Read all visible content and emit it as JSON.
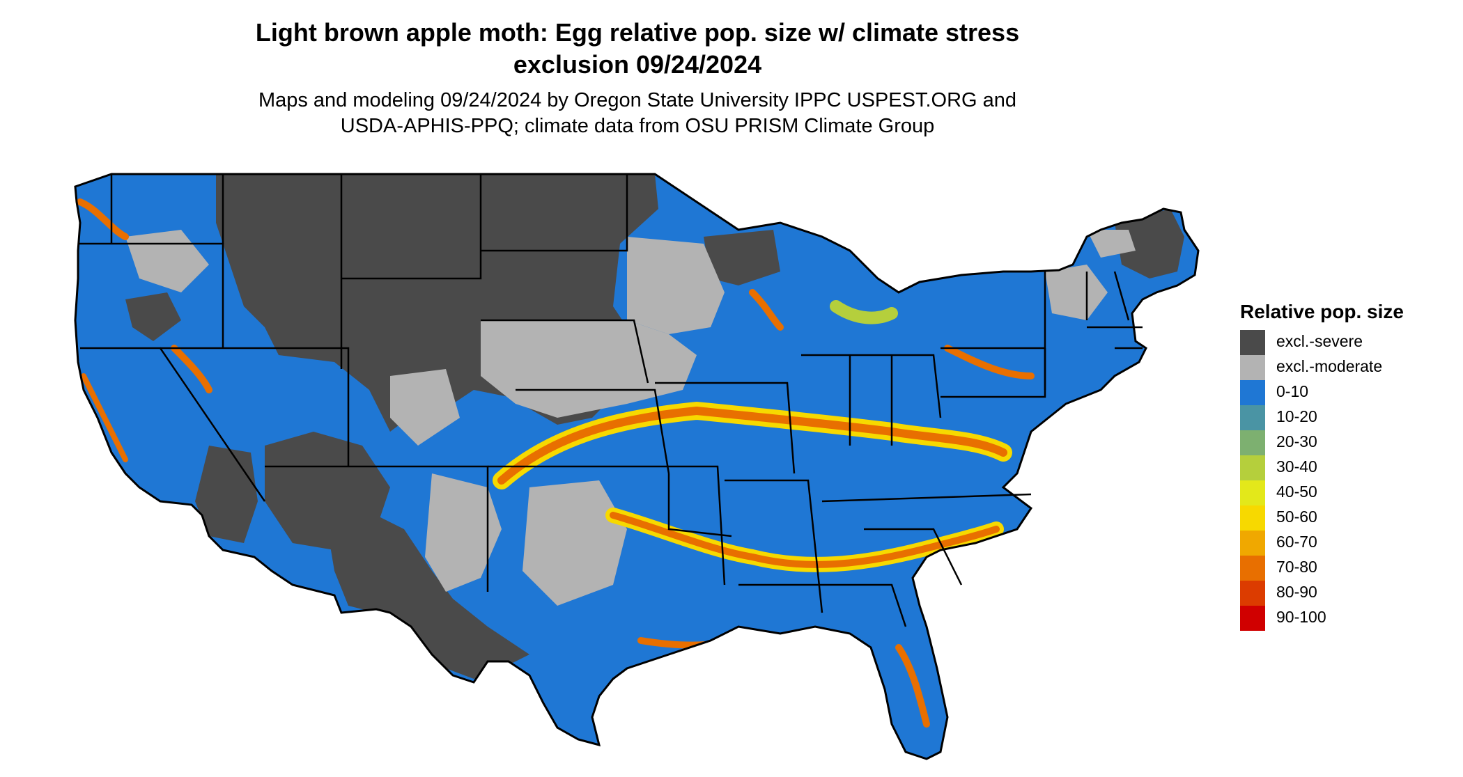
{
  "title_line1": "Light brown apple moth: Egg relative pop. size w/ climate stress",
  "title_line2": "exclusion 09/24/2024",
  "subtitle_line1": "Maps and modeling 09/24/2024 by Oregon State University IPPC USPEST.ORG and",
  "subtitle_line2": "USDA-APHIS-PPQ; climate data from OSU PRISM Climate Group",
  "legend": {
    "title": "Relative pop. size",
    "items": [
      {
        "label": "excl.-severe",
        "color": "#4a4a4a"
      },
      {
        "label": "excl.-moderate",
        "color": "#b3b3b3"
      },
      {
        "label": "0-10",
        "color": "#1f77d4"
      },
      {
        "label": "10-20",
        "color": "#4a94a4"
      },
      {
        "label": "20-30",
        "color": "#7db070"
      },
      {
        "label": "30-40",
        "color": "#b5cf3c"
      },
      {
        "label": "40-50",
        "color": "#e3e81a"
      },
      {
        "label": "50-60",
        "color": "#f7d900"
      },
      {
        "label": "60-70",
        "color": "#f0a800"
      },
      {
        "label": "70-80",
        "color": "#e86f00"
      },
      {
        "label": "80-90",
        "color": "#dc3c00"
      },
      {
        "label": "90-100",
        "color": "#d00000"
      }
    ]
  }
}
